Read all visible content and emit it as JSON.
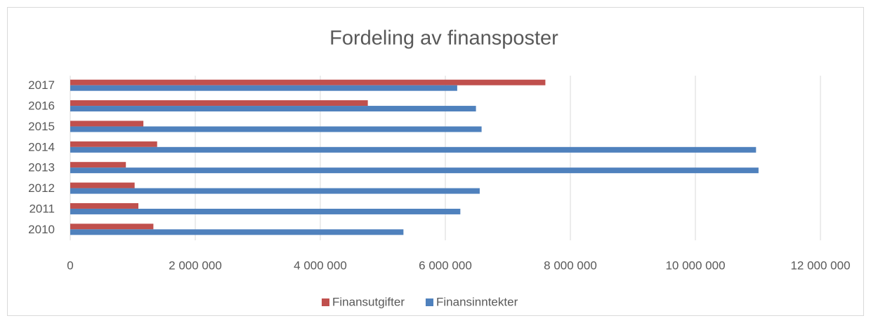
{
  "chart_data": {
    "type": "bar",
    "orientation": "horizontal",
    "title": "Fordeling av finansposter",
    "categories": [
      "2010",
      "2011",
      "2012",
      "2013",
      "2014",
      "2015",
      "2016",
      "2017"
    ],
    "series": [
      {
        "name": "Finansutgifter",
        "color": "#c0504d",
        "values": [
          1330000,
          1090000,
          1030000,
          890000,
          1390000,
          1170000,
          4760000,
          7600000
        ]
      },
      {
        "name": "Finansinntekter",
        "color": "#4f81bd",
        "values": [
          5330000,
          6240000,
          6550000,
          11010000,
          10970000,
          6580000,
          6490000,
          6190000
        ]
      }
    ],
    "xlim": [
      0,
      12000000
    ],
    "xticks": [
      0,
      {
        "value": 2000000,
        "label": "2 000 000"
      },
      {
        "value": 4000000,
        "label": "4 000 000"
      },
      {
        "value": 6000000,
        "label": "6 000 000"
      },
      {
        "value": 8000000,
        "label": "8 000 000"
      },
      {
        "value": 10000000,
        "label": "10 000 000"
      },
      {
        "value": 12000000,
        "label": "12 000 000"
      }
    ],
    "grid": true,
    "legend": "bottom"
  }
}
